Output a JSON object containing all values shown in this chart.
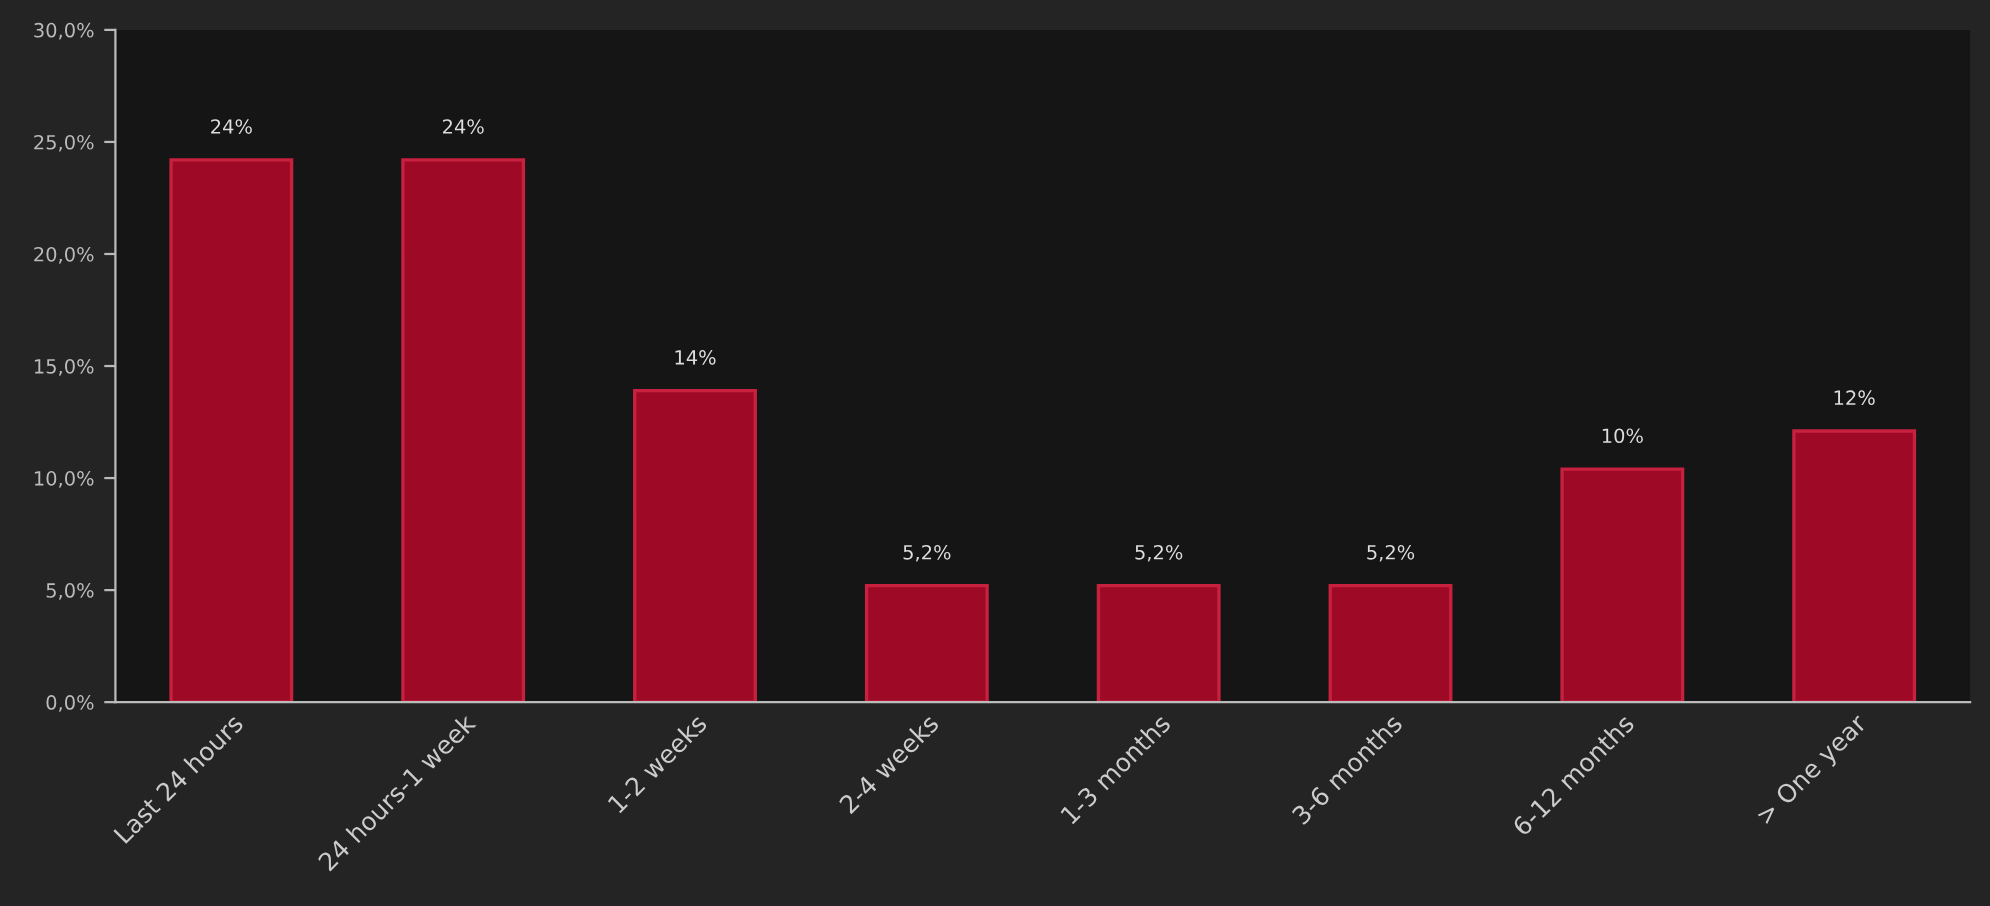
{
  "chart_data": {
    "type": "bar",
    "categories": [
      "Last 24 hours",
      "24 hours-1 week",
      "1-2 weeks",
      "2-4 weeks",
      "1-3 months",
      "3-6 months",
      "6-12 months",
      "> One year"
    ],
    "values": [
      24.2,
      24.2,
      13.9,
      5.2,
      5.2,
      5.2,
      10.4,
      12.1
    ],
    "value_labels": [
      "24%",
      "24%",
      "14%",
      "5,2%",
      "5,2%",
      "5,2%",
      "10%",
      "12%"
    ],
    "color": "#9e0a26",
    "ylim": [
      0,
      30
    ],
    "yticks": [
      {
        "value": 0,
        "label": "0,0%"
      },
      {
        "value": 5,
        "label": "5,0%"
      },
      {
        "value": 10,
        "label": "10,0%"
      },
      {
        "value": 15,
        "label": "15,0%"
      },
      {
        "value": 20,
        "label": "20,0%"
      },
      {
        "value": 25,
        "label": "25,0%"
      },
      {
        "value": 30,
        "label": "30,0%"
      }
    ],
    "grid": false,
    "legend": false
  }
}
